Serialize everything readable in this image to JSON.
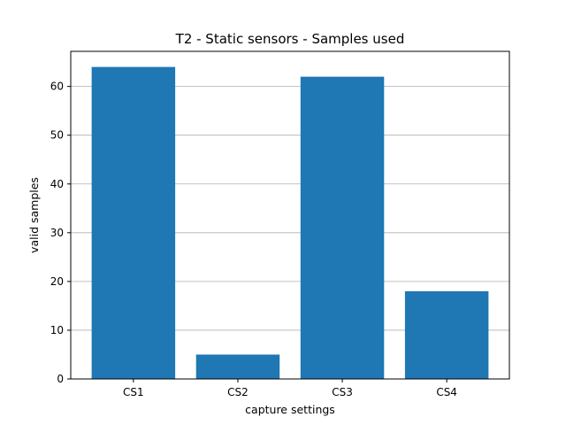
{
  "chart_data": {
    "type": "bar",
    "title": "T2 - Static sensors - Samples used",
    "xlabel": "capture settings",
    "ylabel": "valid samples",
    "categories": [
      "CS1",
      "CS2",
      "CS3",
      "CS4"
    ],
    "values": [
      64,
      5,
      62,
      18
    ],
    "ylim": [
      0,
      67.2
    ],
    "yticks": [
      0,
      10,
      20,
      30,
      40,
      50,
      60
    ],
    "grid": "horizontal",
    "colors": {
      "bar": "#1f77b4",
      "grid": "#b0b0b0",
      "axis": "#000000"
    }
  }
}
